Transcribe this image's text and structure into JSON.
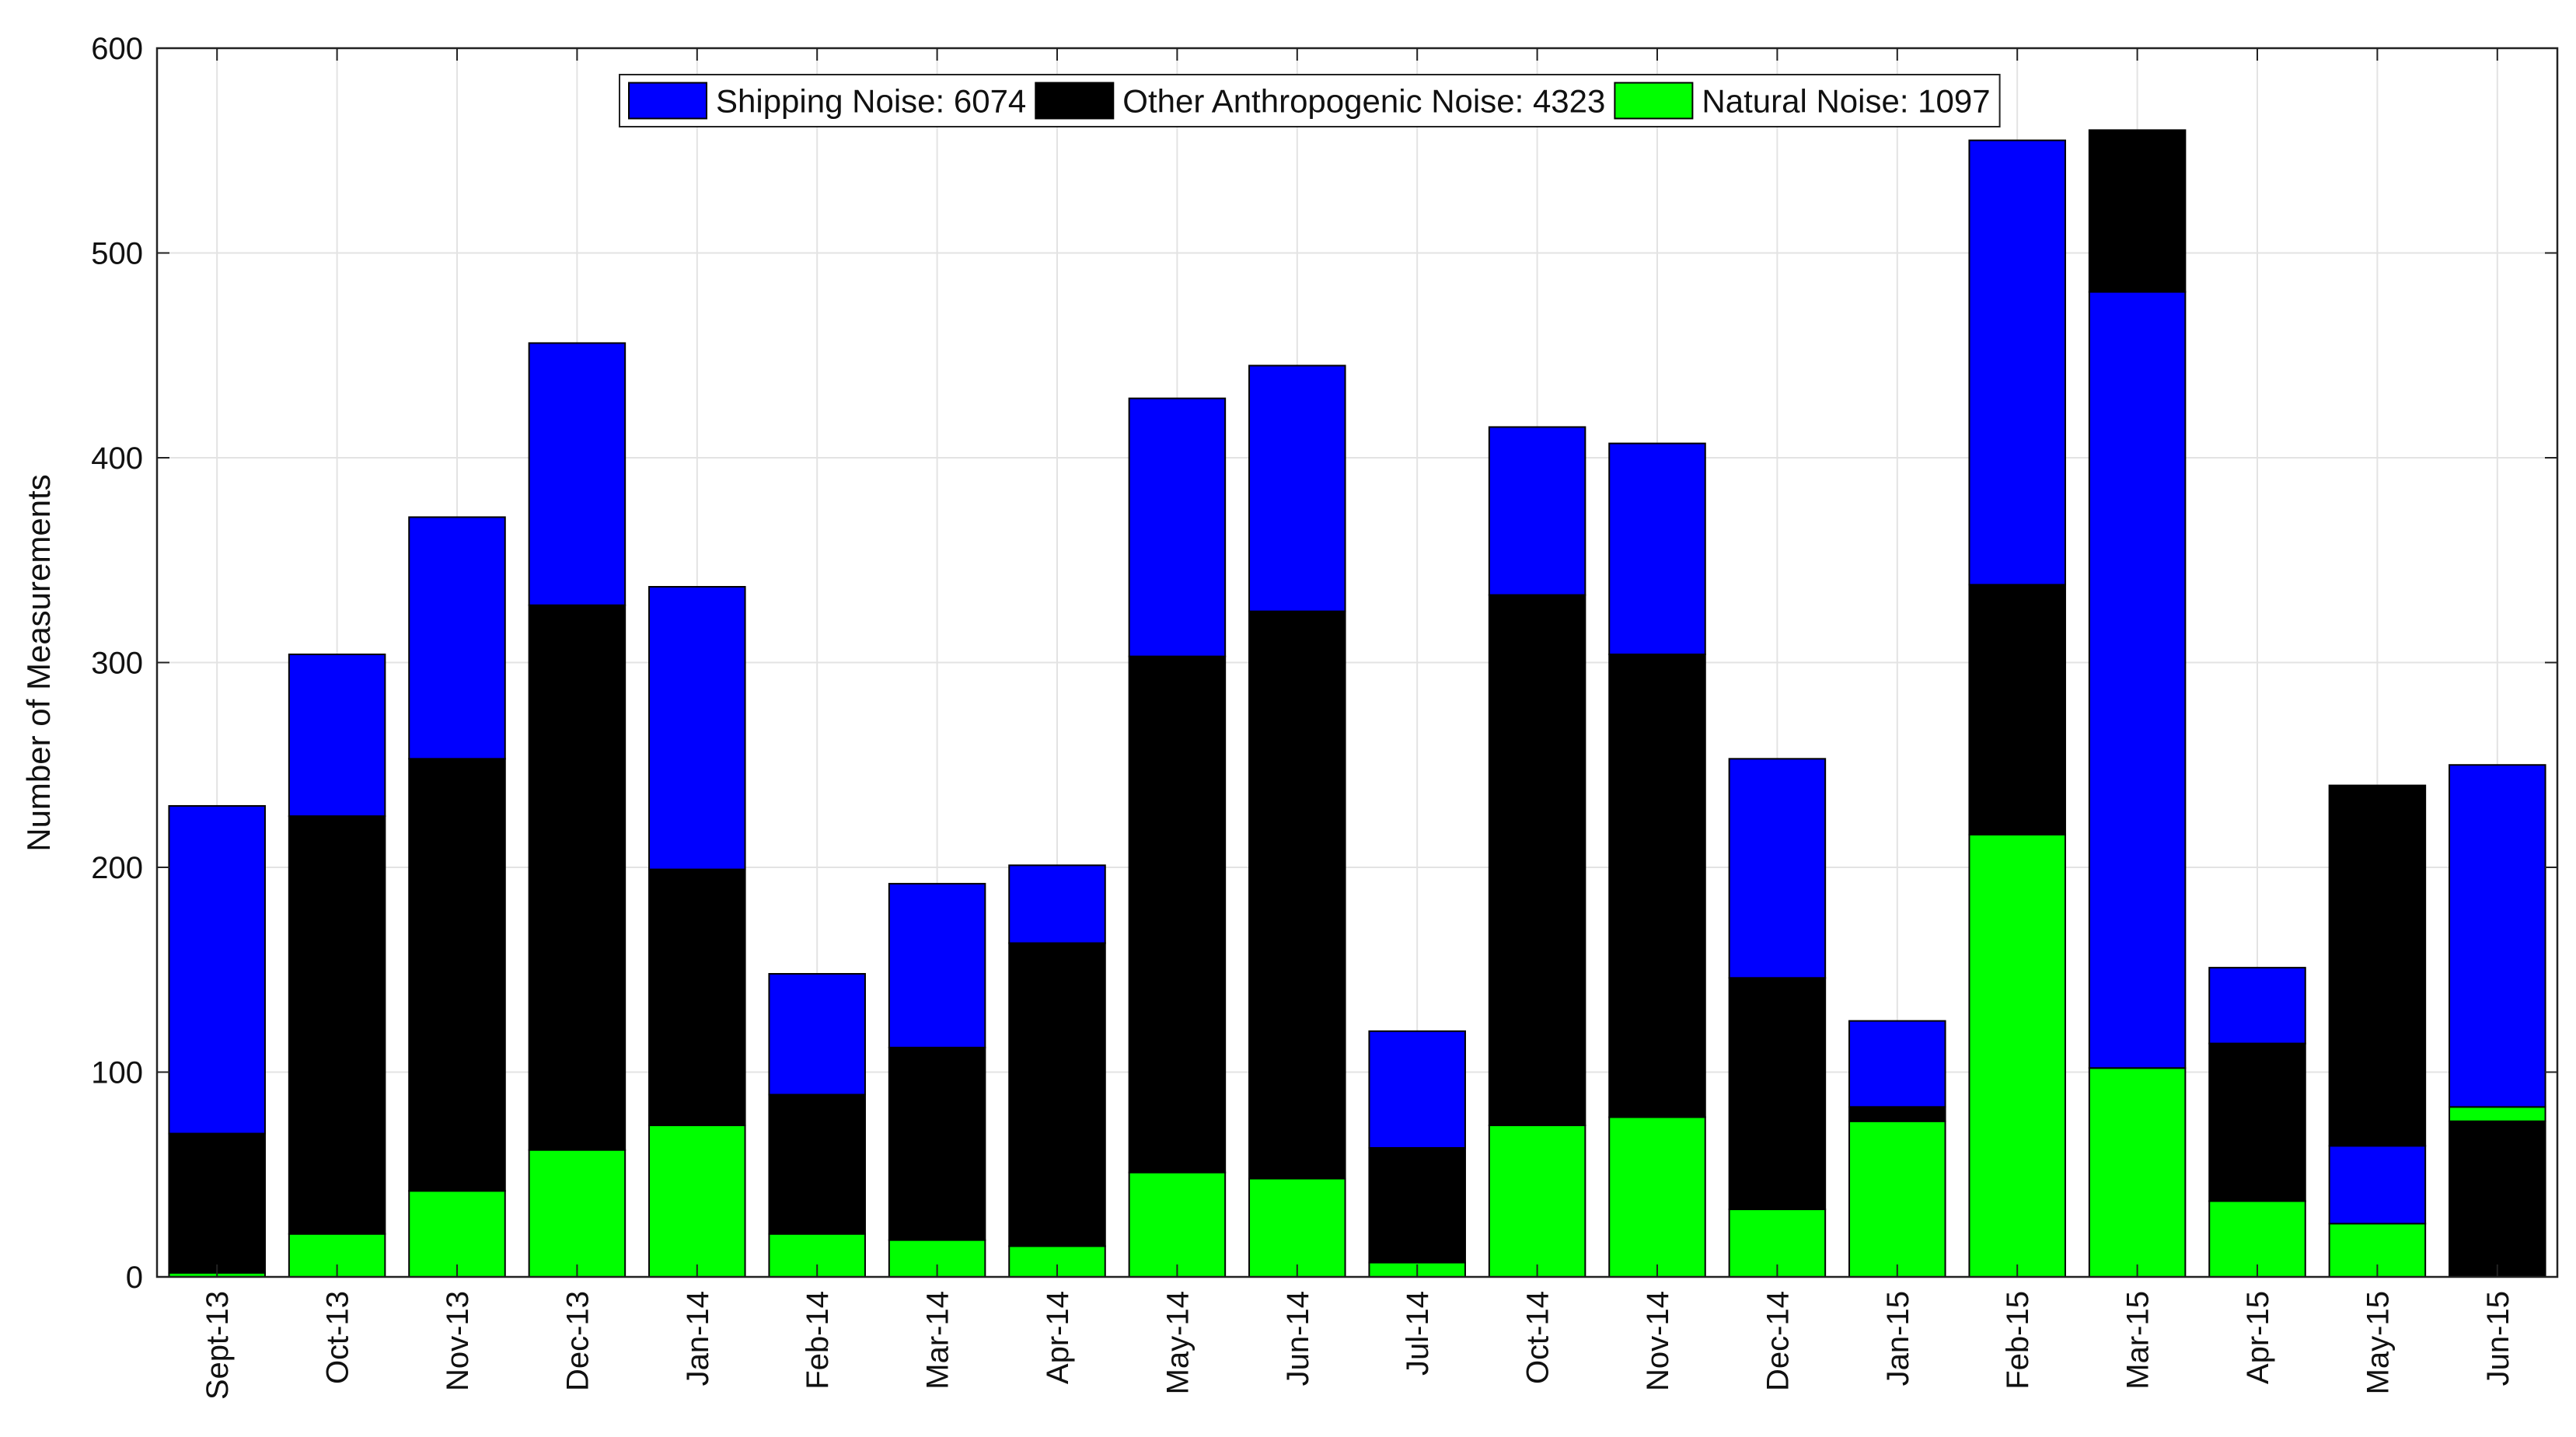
{
  "chart_data": {
    "type": "bar",
    "stacked": true,
    "title": "",
    "xlabel": "",
    "ylabel": "Number of Measurements",
    "ylim": [
      0,
      600
    ],
    "yticks": [
      0,
      100,
      200,
      300,
      400,
      500,
      600
    ],
    "grid": true,
    "legend_position": "top-center",
    "categories": [
      "Sept-13",
      "Oct-13",
      "Nov-13",
      "Dec-13",
      "Jan-14",
      "Feb-14",
      "Mar-14",
      "Apr-14",
      "May-14",
      "Jun-14",
      "Jul-14",
      "Oct-14",
      "Nov-14",
      "Dec-14",
      "Jan-15",
      "Feb-15",
      "Mar-15",
      "Apr-15",
      "May-15",
      "Jun-15"
    ],
    "series": [
      {
        "name": "Natural Noise",
        "legend_label": "Natural Noise: 1097",
        "color": "#00ff00",
        "values": [
          2,
          21,
          42,
          62,
          74,
          21,
          18,
          15,
          51,
          48,
          7,
          74,
          78,
          33,
          76,
          216,
          102,
          37,
          26,
          7
        ]
      },
      {
        "name": "Other Anthropogenic Noise",
        "legend_label": "Other Anthropogenic Noise: 4323",
        "color": "#000000",
        "values": [
          68,
          204,
          211,
          266,
          125,
          68,
          94,
          148,
          252,
          277,
          56,
          259,
          226,
          113,
          7,
          122,
          79,
          77,
          176,
          76
        ]
      },
      {
        "name": "Shipping Noise",
        "legend_label": "Shipping Noise: 6074",
        "color": "#0000ff",
        "values": [
          160,
          79,
          118,
          128,
          138,
          59,
          80,
          38,
          126,
          120,
          57,
          82,
          103,
          107,
          42,
          217,
          379,
          37,
          38,
          167
        ]
      }
    ],
    "stack_order_bottom_to_top": [
      [
        "Natural Noise",
        "Other Anthropogenic Noise",
        "Shipping Noise"
      ],
      [
        "Natural Noise",
        "Other Anthropogenic Noise",
        "Shipping Noise"
      ],
      [
        "Natural Noise",
        "Other Anthropogenic Noise",
        "Shipping Noise"
      ],
      [
        "Natural Noise",
        "Other Anthropogenic Noise",
        "Shipping Noise"
      ],
      [
        "Natural Noise",
        "Other Anthropogenic Noise",
        "Shipping Noise"
      ],
      [
        "Natural Noise",
        "Other Anthropogenic Noise",
        "Shipping Noise"
      ],
      [
        "Natural Noise",
        "Other Anthropogenic Noise",
        "Shipping Noise"
      ],
      [
        "Natural Noise",
        "Other Anthropogenic Noise",
        "Shipping Noise"
      ],
      [
        "Natural Noise",
        "Other Anthropogenic Noise",
        "Shipping Noise"
      ],
      [
        "Natural Noise",
        "Other Anthropogenic Noise",
        "Shipping Noise"
      ],
      [
        "Natural Noise",
        "Other Anthropogenic Noise",
        "Shipping Noise"
      ],
      [
        "Natural Noise",
        "Other Anthropogenic Noise",
        "Shipping Noise"
      ],
      [
        "Natural Noise",
        "Other Anthropogenic Noise",
        "Shipping Noise"
      ],
      [
        "Natural Noise",
        "Other Anthropogenic Noise",
        "Shipping Noise"
      ],
      [
        "Natural Noise",
        "Other Anthropogenic Noise",
        "Shipping Noise"
      ],
      [
        "Natural Noise",
        "Other Anthropogenic Noise",
        "Shipping Noise"
      ],
      [
        "Natural Noise",
        "Shipping Noise",
        "Other Anthropogenic Noise"
      ],
      [
        "Natural Noise",
        "Other Anthropogenic Noise",
        "Shipping Noise"
      ],
      [
        "Natural Noise",
        "Shipping Noise",
        "Other Anthropogenic Noise"
      ],
      [
        "Other Anthropogenic Noise",
        "Natural Noise",
        "Shipping Noise"
      ]
    ],
    "legend_order": [
      "Shipping Noise",
      "Other Anthropogenic Noise",
      "Natural Noise"
    ]
  }
}
